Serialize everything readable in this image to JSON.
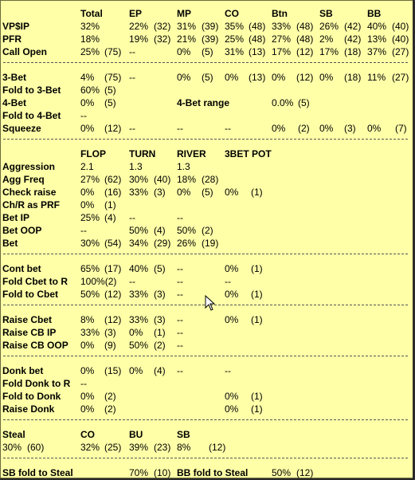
{
  "sections": [
    {
      "top": 8,
      "rows": [
        {
          "cells": [
            [
              "",
              ""
            ],
            [
              "Total",
              "h"
            ],
            [
              "EP",
              "h"
            ],
            [
              "MP",
              "h"
            ],
            [
              "CO",
              "h"
            ],
            [
              "Btn",
              "h"
            ],
            [
              "SB",
              "h"
            ],
            [
              "BB",
              "h"
            ]
          ]
        },
        {
          "cells": [
            [
              "VP$IP",
              "l"
            ],
            [
              "32%",
              ""
            ],
            [
              "22%",
              ""
            ],
            [
              "(32)",
              ""
            ],
            [
              "31%",
              ""
            ],
            [
              "(39)",
              ""
            ],
            [
              "35%",
              ""
            ],
            [
              "(48)",
              ""
            ],
            [
              "33%",
              ""
            ],
            [
              "(48)",
              ""
            ],
            [
              "26%",
              ""
            ],
            [
              "(42)",
              ""
            ],
            [
              "40%",
              ""
            ],
            [
              "(40)",
              ""
            ]
          ]
        },
        {
          "cells": [
            [
              "PFR",
              "l"
            ],
            [
              "18%",
              ""
            ],
            [
              "19%",
              ""
            ],
            [
              "(32)",
              ""
            ],
            [
              "21%",
              ""
            ],
            [
              "(39)",
              ""
            ],
            [
              "25%",
              ""
            ],
            [
              "(48)",
              ""
            ],
            [
              "27%",
              ""
            ],
            [
              "(48)",
              ""
            ],
            [
              "2%",
              ""
            ],
            [
              "(42)",
              ""
            ],
            [
              "13%",
              ""
            ],
            [
              "(40)",
              ""
            ]
          ]
        },
        {
          "cells": [
            [
              "Call Open",
              "l"
            ],
            [
              "25%",
              ""
            ],
            [
              "(75)",
              ""
            ],
            [
              "--",
              ""
            ],
            [
              "0%",
              ""
            ],
            [
              "(5)",
              ""
            ],
            [
              "31%",
              ""
            ],
            [
              "(13)",
              ""
            ],
            [
              "17%",
              ""
            ],
            [
              "(12)",
              ""
            ],
            [
              "17%",
              ""
            ],
            [
              "(18)",
              ""
            ],
            [
              "37%",
              ""
            ],
            [
              "(27)",
              ""
            ]
          ]
        }
      ]
    }
  ],
  "rows": [
    {
      "y": 9,
      "c": [
        [
          "",
          0,
          ""
        ],
        [
          "Total",
          101,
          "h"
        ],
        [
          "EP",
          162,
          "h"
        ],
        [
          "MP",
          222,
          "h"
        ],
        [
          "CO",
          282,
          "h"
        ],
        [
          "Btn",
          341,
          "h"
        ],
        [
          "SB",
          401,
          "h"
        ],
        [
          "BB",
          461,
          "h"
        ]
      ]
    },
    {
      "y": 25,
      "c": [
        [
          "VP$IP",
          3,
          "l"
        ],
        [
          "32%",
          101,
          ""
        ],
        [
          "22%",
          162,
          ""
        ],
        [
          "(32)",
          193,
          ""
        ],
        [
          "31%",
          222,
          ""
        ],
        [
          "(39)",
          253,
          ""
        ],
        [
          "35%",
          282,
          ""
        ],
        [
          "(48)",
          312,
          ""
        ],
        [
          "33%",
          341,
          ""
        ],
        [
          "(48)",
          372,
          ""
        ],
        [
          "26%",
          401,
          ""
        ],
        [
          "(42)",
          432,
          ""
        ],
        [
          "40%",
          461,
          ""
        ],
        [
          "(40)",
          492,
          ""
        ]
      ]
    },
    {
      "y": 41,
      "c": [
        [
          "PFR",
          3,
          "l"
        ],
        [
          "18%",
          101,
          ""
        ],
        [
          "19%",
          162,
          ""
        ],
        [
          "(32)",
          193,
          ""
        ],
        [
          "21%",
          222,
          ""
        ],
        [
          "(39)",
          253,
          ""
        ],
        [
          "25%",
          282,
          ""
        ],
        [
          "(48)",
          312,
          ""
        ],
        [
          "27%",
          341,
          ""
        ],
        [
          "(48)",
          372,
          ""
        ],
        [
          "2%",
          401,
          ""
        ],
        [
          "(42)",
          432,
          ""
        ],
        [
          "13%",
          461,
          ""
        ],
        [
          "(40)",
          492,
          ""
        ]
      ]
    },
    {
      "y": 57,
      "c": [
        [
          "Call Open",
          3,
          "l"
        ],
        [
          "25%",
          101,
          ""
        ],
        [
          "(75)",
          131,
          ""
        ],
        [
          "--",
          162,
          ""
        ],
        [
          "0%",
          222,
          ""
        ],
        [
          "(5)",
          253,
          ""
        ],
        [
          "31%",
          282,
          ""
        ],
        [
          "(13)",
          312,
          ""
        ],
        [
          "17%",
          341,
          ""
        ],
        [
          "(12)",
          372,
          ""
        ],
        [
          "17%",
          401,
          ""
        ],
        [
          "(18)",
          432,
          ""
        ],
        [
          "37%",
          461,
          ""
        ],
        [
          "(27)",
          492,
          ""
        ]
      ]
    },
    {
      "y": 89,
      "c": [
        [
          "3-Bet",
          3,
          "l"
        ],
        [
          "4%",
          101,
          ""
        ],
        [
          "(75)",
          131,
          ""
        ],
        [
          "--",
          162,
          ""
        ],
        [
          "0%",
          222,
          ""
        ],
        [
          "(5)",
          253,
          ""
        ],
        [
          "0%",
          282,
          ""
        ],
        [
          "(13)",
          312,
          ""
        ],
        [
          "0%",
          341,
          ""
        ],
        [
          "(12)",
          372,
          ""
        ],
        [
          "0%",
          401,
          ""
        ],
        [
          "(18)",
          432,
          ""
        ],
        [
          "11%",
          461,
          ""
        ],
        [
          "(27)",
          492,
          ""
        ]
      ]
    },
    {
      "y": 105,
      "c": [
        [
          "Fold to 3-Bet",
          3,
          "l"
        ],
        [
          "60%",
          101,
          ""
        ],
        [
          "(5)",
          131,
          ""
        ]
      ]
    },
    {
      "y": 121,
      "c": [
        [
          "4-Bet",
          3,
          "l"
        ],
        [
          "0%",
          101,
          ""
        ],
        [
          "(5)",
          131,
          ""
        ],
        [
          "4-Bet range",
          222,
          "l"
        ],
        [
          "0.0%",
          341,
          ""
        ],
        [
          "(5)",
          374,
          ""
        ]
      ]
    },
    {
      "y": 137,
      "c": [
        [
          "Fold to 4-Bet",
          3,
          "l"
        ],
        [
          "--",
          101,
          ""
        ]
      ]
    },
    {
      "y": 153,
      "c": [
        [
          "Squeeze",
          3,
          "l"
        ],
        [
          "0%",
          101,
          ""
        ],
        [
          "(12)",
          131,
          ""
        ],
        [
          "--",
          162,
          ""
        ],
        [
          "--",
          222,
          ""
        ],
        [
          "--",
          282,
          ""
        ],
        [
          "0%",
          341,
          ""
        ],
        [
          "(2)",
          374,
          ""
        ],
        [
          "0%",
          401,
          ""
        ],
        [
          "(3)",
          432,
          ""
        ],
        [
          "0%",
          461,
          ""
        ],
        [
          "(7)",
          496,
          ""
        ]
      ]
    },
    {
      "y": 185,
      "c": [
        [
          "",
          0,
          ""
        ],
        [
          "FLOP",
          101,
          "h"
        ],
        [
          "TURN",
          162,
          "h"
        ],
        [
          "RIVER",
          222,
          "h"
        ],
        [
          "3BET POT",
          282,
          "h"
        ]
      ]
    },
    {
      "y": 201,
      "c": [
        [
          "Aggression",
          3,
          "l"
        ],
        [
          "2.1",
          101,
          ""
        ],
        [
          "1.3",
          162,
          ""
        ],
        [
          "1.3",
          222,
          ""
        ]
      ]
    },
    {
      "y": 217,
      "c": [
        [
          "Agg Freq",
          3,
          "l"
        ],
        [
          "27%",
          101,
          ""
        ],
        [
          "(62)",
          131,
          ""
        ],
        [
          "30%",
          162,
          ""
        ],
        [
          "(40)",
          193,
          ""
        ],
        [
          "18%",
          222,
          ""
        ],
        [
          "(28)",
          253,
          ""
        ]
      ]
    },
    {
      "y": 233,
      "c": [
        [
          "Check raise",
          3,
          "l"
        ],
        [
          "0%",
          101,
          ""
        ],
        [
          "(16)",
          131,
          ""
        ],
        [
          "33%",
          162,
          ""
        ],
        [
          "(3)",
          193,
          ""
        ],
        [
          "0%",
          222,
          ""
        ],
        [
          "(5)",
          253,
          ""
        ],
        [
          "0%",
          282,
          ""
        ],
        [
          "(1)",
          315,
          ""
        ]
      ]
    },
    {
      "y": 249,
      "c": [
        [
          "Ch/R as PRF",
          3,
          "l"
        ],
        [
          "0%",
          101,
          ""
        ],
        [
          "(1)",
          131,
          ""
        ]
      ]
    },
    {
      "y": 265,
      "c": [
        [
          "Bet IP",
          3,
          "l"
        ],
        [
          "25%",
          101,
          ""
        ],
        [
          "(4)",
          131,
          ""
        ],
        [
          "--",
          162,
          ""
        ],
        [
          "--",
          222,
          ""
        ]
      ]
    },
    {
      "y": 281,
      "c": [
        [
          "Bet OOP",
          3,
          "l"
        ],
        [
          "--",
          101,
          ""
        ],
        [
          "50%",
          162,
          ""
        ],
        [
          "(4)",
          193,
          ""
        ],
        [
          "50%",
          222,
          ""
        ],
        [
          "(2)",
          253,
          ""
        ]
      ]
    },
    {
      "y": 297,
      "c": [
        [
          "Bet",
          3,
          "l"
        ],
        [
          "30%",
          101,
          ""
        ],
        [
          "(54)",
          131,
          ""
        ],
        [
          "34%",
          162,
          ""
        ],
        [
          "(29)",
          193,
          ""
        ],
        [
          "26%",
          222,
          ""
        ],
        [
          "(19)",
          253,
          ""
        ]
      ]
    },
    {
      "y": 329,
      "c": [
        [
          "Cont bet",
          3,
          "l"
        ],
        [
          "65%",
          101,
          ""
        ],
        [
          "(17)",
          131,
          ""
        ],
        [
          "40%",
          162,
          ""
        ],
        [
          "(5)",
          193,
          ""
        ],
        [
          "--",
          222,
          ""
        ],
        [
          "0%",
          282,
          ""
        ],
        [
          "(1)",
          315,
          ""
        ]
      ]
    },
    {
      "y": 345,
      "c": [
        [
          "Fold Cbet to R",
          3,
          "l"
        ],
        [
          "100%(2)",
          101,
          ""
        ],
        [
          "--",
          162,
          ""
        ],
        [
          "--",
          222,
          ""
        ],
        [
          "--",
          282,
          ""
        ]
      ]
    },
    {
      "y": 361,
      "c": [
        [
          "Fold to Cbet",
          3,
          "l"
        ],
        [
          "50%",
          101,
          ""
        ],
        [
          "(12)",
          131,
          ""
        ],
        [
          "33%",
          162,
          ""
        ],
        [
          "(3)",
          193,
          ""
        ],
        [
          "--",
          222,
          ""
        ],
        [
          "0%",
          282,
          ""
        ],
        [
          "(1)",
          315,
          ""
        ]
      ]
    },
    {
      "y": 393,
      "c": [
        [
          "Raise Cbet",
          3,
          "l"
        ],
        [
          "8%",
          101,
          ""
        ],
        [
          "(12)",
          131,
          ""
        ],
        [
          "33%",
          162,
          ""
        ],
        [
          "(3)",
          193,
          ""
        ],
        [
          "--",
          222,
          ""
        ],
        [
          "0%",
          282,
          ""
        ],
        [
          "(1)",
          315,
          ""
        ]
      ]
    },
    {
      "y": 409,
      "c": [
        [
          "Raise CB IP",
          3,
          "l"
        ],
        [
          "33%",
          101,
          ""
        ],
        [
          "(3)",
          131,
          ""
        ],
        [
          "0%",
          162,
          ""
        ],
        [
          "(1)",
          193,
          ""
        ],
        [
          "--",
          222,
          ""
        ]
      ]
    },
    {
      "y": 425,
      "c": [
        [
          "Raise CB OOP",
          3,
          "l"
        ],
        [
          "0%",
          101,
          ""
        ],
        [
          "(9)",
          131,
          ""
        ],
        [
          "50%",
          162,
          ""
        ],
        [
          "(2)",
          193,
          ""
        ],
        [
          "--",
          222,
          ""
        ]
      ]
    },
    {
      "y": 457,
      "c": [
        [
          "Donk bet",
          3,
          "l"
        ],
        [
          "0%",
          101,
          ""
        ],
        [
          "(15)",
          131,
          ""
        ],
        [
          "0%",
          162,
          ""
        ],
        [
          "(4)",
          193,
          ""
        ],
        [
          "--",
          222,
          ""
        ],
        [
          "--",
          282,
          ""
        ]
      ]
    },
    {
      "y": 473,
      "c": [
        [
          "Fold Donk to R",
          3,
          "l"
        ],
        [
          "--",
          101,
          ""
        ]
      ]
    },
    {
      "y": 489,
      "c": [
        [
          "Fold to Donk",
          3,
          "l"
        ],
        [
          "0%",
          101,
          ""
        ],
        [
          "(2)",
          131,
          ""
        ],
        [
          "0%",
          282,
          ""
        ],
        [
          "(1)",
          315,
          ""
        ]
      ]
    },
    {
      "y": 505,
      "c": [
        [
          "Raise Donk",
          3,
          "l"
        ],
        [
          "0%",
          101,
          ""
        ],
        [
          "(2)",
          131,
          ""
        ],
        [
          "0%",
          282,
          ""
        ],
        [
          "(1)",
          315,
          ""
        ]
      ]
    },
    {
      "y": 537,
      "c": [
        [
          "Steal",
          3,
          "l"
        ],
        [
          "CO",
          101,
          "h"
        ],
        [
          "BU",
          162,
          "h"
        ],
        [
          "SB",
          222,
          "h"
        ]
      ]
    },
    {
      "y": 553,
      "c": [
        [
          "30%",
          3,
          ""
        ],
        [
          "(60)",
          34,
          ""
        ],
        [
          "32%",
          101,
          ""
        ],
        [
          "(25)",
          131,
          ""
        ],
        [
          "39%",
          162,
          ""
        ],
        [
          "(23)",
          193,
          ""
        ],
        [
          "8%",
          222,
          ""
        ],
        [
          "(12)",
          262,
          ""
        ]
      ]
    },
    {
      "y": 585,
      "c": [
        [
          "SB fold to Steal",
          3,
          "l"
        ],
        [
          "70%",
          162,
          ""
        ],
        [
          "(10)",
          193,
          ""
        ],
        [
          "BB fold to Steal",
          222,
          "l"
        ],
        [
          "50%",
          341,
          ""
        ],
        [
          "(12)",
          372,
          ""
        ]
      ]
    }
  ],
  "separators": [
    78,
    174,
    318,
    382,
    446,
    526,
    574
  ]
}
